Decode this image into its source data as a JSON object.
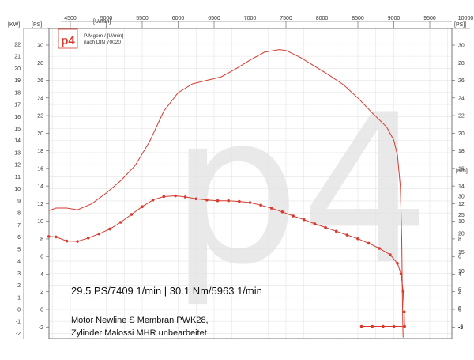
{
  "chart_data": {
    "type": "line",
    "x_axis_top": {
      "unit": "[U/min]",
      "ticks": [
        4500,
        5000,
        5500,
        6000,
        6500,
        7000,
        7500,
        8000,
        8500,
        9000,
        9500,
        10000
      ],
      "range": [
        4200,
        10000
      ]
    },
    "y_axis_kw": {
      "unit": "[KW]",
      "ticks": [
        -2,
        -1,
        0,
        1,
        2,
        3,
        4,
        5,
        6,
        7,
        8,
        9,
        10,
        11,
        12,
        13,
        14,
        15,
        16,
        17,
        18,
        19,
        20,
        21,
        22
      ],
      "range": [
        -2.3,
        22.8
      ]
    },
    "y_axis_ps": {
      "unit": "[PS]",
      "ticks": [
        -2,
        0,
        2,
        4,
        6,
        8,
        10,
        12,
        14,
        16,
        18,
        20,
        22,
        24,
        26,
        28,
        30
      ],
      "range": [
        -3.2,
        31.3
      ]
    },
    "y_axis_ps_right": {
      "unit": "[PS]",
      "ticks": [
        -2,
        0,
        2,
        4,
        6,
        8,
        10,
        12,
        14,
        16,
        18,
        20,
        22,
        24,
        26,
        28,
        30
      ]
    },
    "y_axis_nm": {
      "unit": "[Nm]",
      "ticks": [
        -5,
        0,
        5,
        10,
        15,
        20,
        25,
        30
      ],
      "range": [
        -7.6,
        40.6
      ]
    },
    "legend": {
      "line1": "P/Mgem / [U/min]",
      "line2": "nach DIN 70020"
    },
    "logo": "p4",
    "watermark": "p4",
    "series": [
      {
        "axis": "ps",
        "points": [
          [
            4200,
            11.2
          ],
          [
            4300,
            11.5
          ],
          [
            4450,
            11.5
          ],
          [
            4600,
            11.3
          ],
          [
            4800,
            12.0
          ],
          [
            5000,
            13.2
          ],
          [
            5200,
            14.6
          ],
          [
            5400,
            16.3
          ],
          [
            5600,
            19.0
          ],
          [
            5800,
            22.5
          ],
          [
            6000,
            24.6
          ],
          [
            6200,
            25.6
          ],
          [
            6400,
            26.0
          ],
          [
            6600,
            26.4
          ],
          [
            6800,
            27.3
          ],
          [
            7000,
            28.3
          ],
          [
            7200,
            29.2
          ],
          [
            7409,
            29.5
          ],
          [
            7500,
            29.4
          ],
          [
            7700,
            28.6
          ],
          [
            7900,
            27.6
          ],
          [
            8100,
            26.6
          ],
          [
            8300,
            25.5
          ],
          [
            8500,
            24.0
          ],
          [
            8700,
            22.3
          ],
          [
            8900,
            20.7
          ],
          [
            9000,
            19.2
          ],
          [
            9050,
            17.5
          ],
          [
            9090,
            14.0
          ],
          [
            9110,
            8.0
          ],
          [
            9120,
            1.0
          ],
          [
            9125,
            -2.0
          ],
          [
            9130,
            -3.2
          ]
        ]
      },
      {
        "axis": "nm",
        "points": [
          [
            4200,
            19.2
          ],
          [
            4300,
            19.1
          ],
          [
            4450,
            18.0
          ],
          [
            4600,
            17.9
          ],
          [
            4750,
            18.8
          ],
          [
            4900,
            19.9
          ],
          [
            5050,
            21.2
          ],
          [
            5200,
            23.0
          ],
          [
            5350,
            25.1
          ],
          [
            5500,
            27.2
          ],
          [
            5650,
            29.0
          ],
          [
            5800,
            29.9
          ],
          [
            5963,
            30.1
          ],
          [
            6100,
            29.8
          ],
          [
            6250,
            29.3
          ],
          [
            6400,
            29.0
          ],
          [
            6550,
            28.8
          ],
          [
            6700,
            28.8
          ],
          [
            6850,
            28.6
          ],
          [
            7000,
            28.3
          ],
          [
            7150,
            27.6
          ],
          [
            7300,
            26.8
          ],
          [
            7450,
            25.8
          ],
          [
            7600,
            24.7
          ],
          [
            7750,
            23.7
          ],
          [
            7900,
            22.6
          ],
          [
            8050,
            21.6
          ],
          [
            8200,
            20.6
          ],
          [
            8350,
            19.6
          ],
          [
            8500,
            18.6
          ],
          [
            8650,
            17.4
          ],
          [
            8800,
            16.0
          ],
          [
            8950,
            14.3
          ],
          [
            9050,
            12.0
          ],
          [
            9100,
            9.2
          ],
          [
            9130,
            4.5
          ],
          [
            9145,
            -1.0
          ],
          [
            9150,
            -4.9
          ],
          [
            9000,
            -4.9
          ],
          [
            8850,
            -4.9
          ],
          [
            8700,
            -4.9
          ],
          [
            8550,
            -4.9
          ]
        ]
      }
    ],
    "annotations": {
      "peak": "29.5 PS/7409 1/min | 30.1 Nm/5963 1/min",
      "line1": "Motor Newline S Membran PWK28,",
      "line2": "Zylinder Malossi MHR unbearbeitet"
    },
    "grid": true,
    "line_color": "#d83a2e"
  }
}
